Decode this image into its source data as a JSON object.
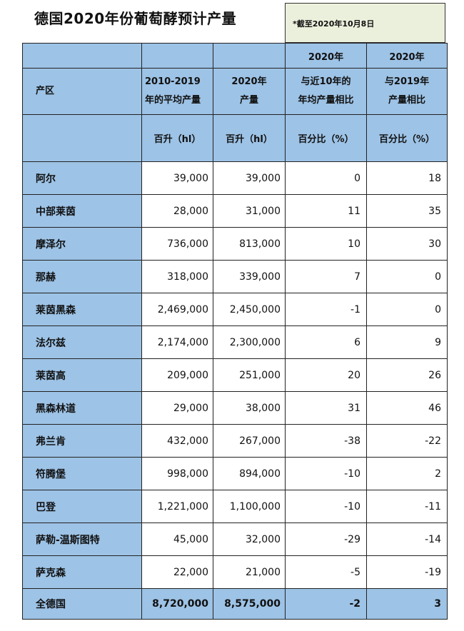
{
  "title": "德国2020年份葡萄酵预计产量",
  "note": "*截至2020年10月8日",
  "header": {
    "row1": [
      "",
      "",
      "",
      "2020年",
      "2020年"
    ],
    "row2": [
      [
        "产区"
      ],
      [
        "2010-2019",
        "年的平均产量"
      ],
      [
        "2020年",
        "产量"
      ],
      [
        "与近10年的",
        "年均产量相比"
      ],
      [
        "与2019年",
        "产量相比"
      ]
    ],
    "row3": [
      "",
      "百升（hl）",
      "百升（hl）",
      "百分比（%）",
      "百分比（%）"
    ]
  },
  "rows": [
    [
      "阿尔",
      "39,000",
      "39,000",
      "0",
      "18"
    ],
    [
      "中部莱茵",
      "28,000",
      "31,000",
      "11",
      "35"
    ],
    [
      "摩泽尔",
      "736,000",
      "813,000",
      "10",
      "30"
    ],
    [
      "那赫",
      "318,000",
      "339,000",
      "7",
      "0"
    ],
    [
      "莱茵黑森",
      "2,469,000",
      "2,450,000",
      "-1",
      "0"
    ],
    [
      "法尔兹",
      "2,174,000",
      "2,300,000",
      "6",
      "9"
    ],
    [
      "莱茵高",
      "209,000",
      "251,000",
      "20",
      "26"
    ],
    [
      "黑森林道",
      "29,000",
      "38,000",
      "31",
      "46"
    ],
    [
      "弗兰肯",
      "432,000",
      "267,000",
      "-38",
      "-22"
    ],
    [
      "符腾堡",
      "998,000",
      "894,000",
      "-10",
      "2"
    ],
    [
      "巴登",
      "1,221,000",
      "1,100,000",
      "-10",
      "-11"
    ],
    [
      "萨勒-温斯图特",
      "45,000",
      "32,000",
      "-29",
      "-14"
    ],
    [
      "萨克森",
      "22,000",
      "21,000",
      "-5",
      "-19"
    ]
  ],
  "total": [
    "全德国",
    "8,720,000",
    "8,575,000",
    "-2",
    "3"
  ],
  "colors": {
    "header": "#9dc3e6",
    "note": "#ebf0dc"
  }
}
